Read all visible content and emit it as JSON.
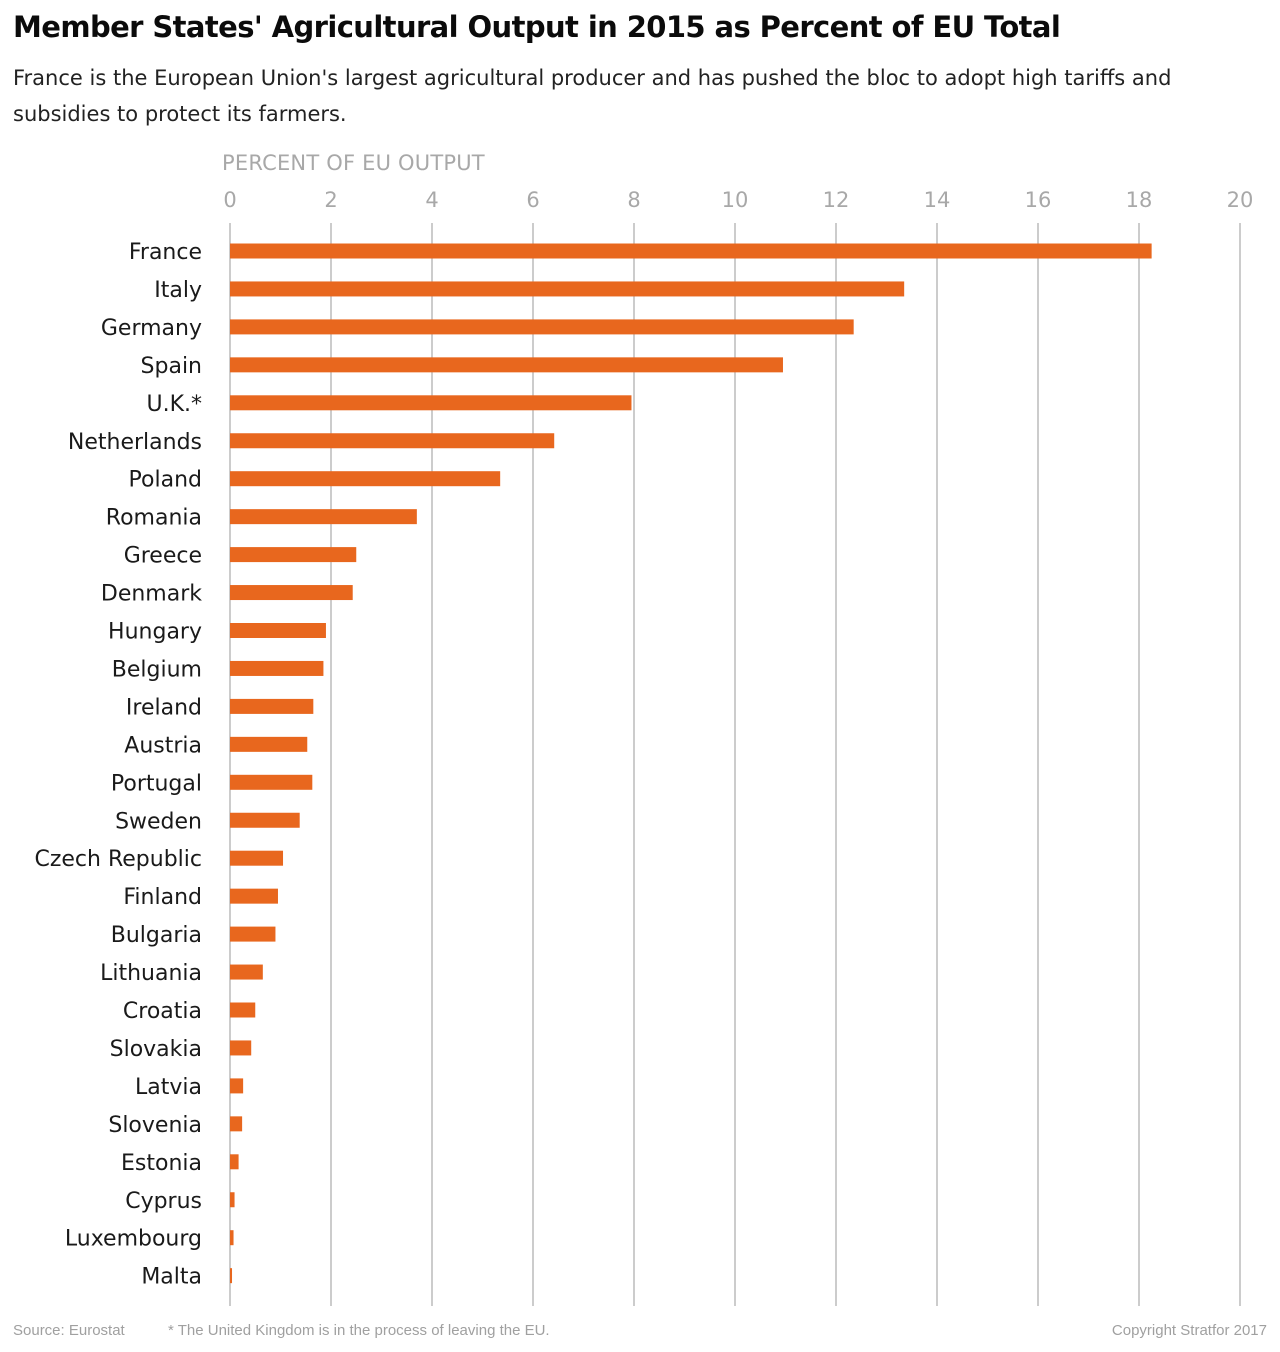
{
  "title": "Member States' Agricultural Output in 2015 as Percent of EU Total",
  "subtitle": "France is the European Union's largest agricultural producer and has pushed the bloc to adopt high tariffs and subsidies to protect its farmers.",
  "footer": {
    "source": "Source: Eurostat",
    "note": "* The United Kingdom is in the process of leaving the EU.",
    "copyright": "Copyright Stratfor 2017"
  },
  "colors": {
    "bar": "#e8671e",
    "grid": "#9a9a9a",
    "tick_label": "#a8a8a8",
    "category_label": "#1a1a1a"
  },
  "chart_data": {
    "type": "bar",
    "orientation": "horizontal",
    "xlabel": "PERCENT OF EU OUTPUT",
    "xlim": [
      0,
      20
    ],
    "xticks": [
      0,
      2,
      4,
      6,
      8,
      10,
      12,
      14,
      16,
      18,
      20
    ],
    "axis_position": "top",
    "grid": true,
    "categories": [
      "France",
      "Italy",
      "Germany",
      "Spain",
      "U.K.*",
      "Netherlands",
      "Poland",
      "Romania",
      "Greece",
      "Denmark",
      "Hungary",
      "Belgium",
      "Ireland",
      "Austria",
      "Portugal",
      "Sweden",
      "Czech Republic",
      "Finland",
      "Bulgaria",
      "Lithuania",
      "Croatia",
      "Slovakia",
      "Latvia",
      "Slovenia",
      "Estonia",
      "Cyprus",
      "Luxembourg",
      "Malta"
    ],
    "values": [
      18.25,
      13.35,
      12.35,
      10.95,
      7.95,
      6.42,
      5.35,
      3.7,
      2.5,
      2.43,
      1.9,
      1.85,
      1.65,
      1.53,
      1.63,
      1.38,
      1.05,
      0.95,
      0.9,
      0.65,
      0.5,
      0.42,
      0.26,
      0.24,
      0.17,
      0.09,
      0.07,
      0.04
    ]
  }
}
